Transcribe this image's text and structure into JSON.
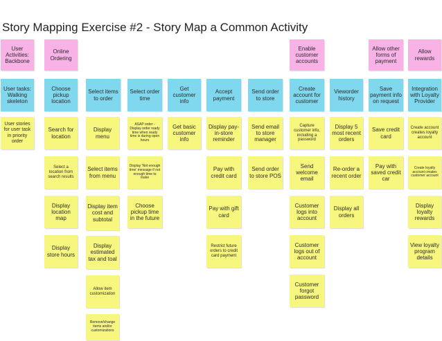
{
  "title": "Story Mapping Exercise #2 - Story Map a Common Activity",
  "colors": {
    "activity": "#f8b2e6",
    "task": "#7fd8ee",
    "story": "#f7f77f"
  },
  "backbone": [
    "User Activities: Backbone",
    "Online Ordering",
    "Enable customer accounts",
    "Allow other forms of payment",
    "Allow rewards"
  ],
  "tasks": [
    "User tasks: Walking skeleton",
    "Choose pickup location",
    "Select items to order",
    "Select order time",
    "Get customer info",
    "Accept payment",
    "Send order to store",
    "Create account for customer",
    "Vieworder history",
    "Save payment info on request",
    "Integration with Loyalty Provider"
  ],
  "stories": {
    "intro": "User stories for user task in priority order",
    "location": [
      "Search for location",
      "Select a location from search results",
      "Display location map",
      "Display store hours"
    ],
    "items": [
      "Display menu",
      "Select items from menu",
      "Display item cost and subtotal",
      "Display estimated tax and toal",
      "Allow item customization",
      "Remove/change items and/or customizations"
    ],
    "time": [
      "ASAP order - Display order ready time when ready time is during open hours",
      "Display 'Not enough time' message if not enough time to make",
      "Choose pickup time in the future"
    ],
    "customer": [
      "Get basic customer info"
    ],
    "payment": [
      "Display pay-in-store reminder",
      "Pay with credit card",
      "Pay with gift card",
      "Restrict future orders to credit card payment"
    ],
    "send": [
      "Send email to store manager",
      "Send order to store POS"
    ],
    "account": [
      "Capture customer info, including a password",
      "Send welcome email",
      "Customer logs into account",
      "Customer logs out of account",
      "Customer forgot password"
    ],
    "history": [
      "Display 5 most recent orders",
      "Re-order a recent order",
      "Display all orders"
    ],
    "savepay": [
      "Save credit card",
      "Pay with saved credit car"
    ],
    "loyalty": [
      "Create account creates loyalty account",
      "Create loyalty account creates customer account",
      "Display loyalty rewards",
      "View loyalty program details"
    ]
  }
}
